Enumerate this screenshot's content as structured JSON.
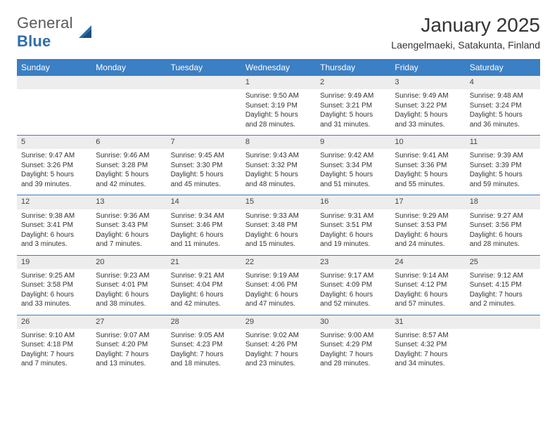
{
  "brand": {
    "word1": "General",
    "word2": "Blue"
  },
  "title": "January 2025",
  "location": "Laengelmaeki, Satakunta, Finland",
  "colors": {
    "header_bg": "#3b7fc4",
    "header_text": "#ffffff",
    "daynum_bg": "#ededed",
    "week_sep": "#3b7fc4",
    "text": "#333333",
    "logo_gray": "#5a5a5a",
    "logo_blue": "#2f6da8"
  },
  "typography": {
    "title_fontsize": 28,
    "location_fontsize": 14,
    "header_fontsize": 12,
    "daynum_fontsize": 11,
    "info_fontsize": 10
  },
  "day_headers": [
    "Sunday",
    "Monday",
    "Tuesday",
    "Wednesday",
    "Thursday",
    "Friday",
    "Saturday"
  ],
  "weeks": [
    [
      null,
      null,
      null,
      {
        "n": "1",
        "sr": "9:50 AM",
        "ss": "3:19 PM",
        "dl": "5 hours and 28 minutes."
      },
      {
        "n": "2",
        "sr": "9:49 AM",
        "ss": "3:21 PM",
        "dl": "5 hours and 31 minutes."
      },
      {
        "n": "3",
        "sr": "9:49 AM",
        "ss": "3:22 PM",
        "dl": "5 hours and 33 minutes."
      },
      {
        "n": "4",
        "sr": "9:48 AM",
        "ss": "3:24 PM",
        "dl": "5 hours and 36 minutes."
      }
    ],
    [
      {
        "n": "5",
        "sr": "9:47 AM",
        "ss": "3:26 PM",
        "dl": "5 hours and 39 minutes."
      },
      {
        "n": "6",
        "sr": "9:46 AM",
        "ss": "3:28 PM",
        "dl": "5 hours and 42 minutes."
      },
      {
        "n": "7",
        "sr": "9:45 AM",
        "ss": "3:30 PM",
        "dl": "5 hours and 45 minutes."
      },
      {
        "n": "8",
        "sr": "9:43 AM",
        "ss": "3:32 PM",
        "dl": "5 hours and 48 minutes."
      },
      {
        "n": "9",
        "sr": "9:42 AM",
        "ss": "3:34 PM",
        "dl": "5 hours and 51 minutes."
      },
      {
        "n": "10",
        "sr": "9:41 AM",
        "ss": "3:36 PM",
        "dl": "5 hours and 55 minutes."
      },
      {
        "n": "11",
        "sr": "9:39 AM",
        "ss": "3:39 PM",
        "dl": "5 hours and 59 minutes."
      }
    ],
    [
      {
        "n": "12",
        "sr": "9:38 AM",
        "ss": "3:41 PM",
        "dl": "6 hours and 3 minutes."
      },
      {
        "n": "13",
        "sr": "9:36 AM",
        "ss": "3:43 PM",
        "dl": "6 hours and 7 minutes."
      },
      {
        "n": "14",
        "sr": "9:34 AM",
        "ss": "3:46 PM",
        "dl": "6 hours and 11 minutes."
      },
      {
        "n": "15",
        "sr": "9:33 AM",
        "ss": "3:48 PM",
        "dl": "6 hours and 15 minutes."
      },
      {
        "n": "16",
        "sr": "9:31 AM",
        "ss": "3:51 PM",
        "dl": "6 hours and 19 minutes."
      },
      {
        "n": "17",
        "sr": "9:29 AM",
        "ss": "3:53 PM",
        "dl": "6 hours and 24 minutes."
      },
      {
        "n": "18",
        "sr": "9:27 AM",
        "ss": "3:56 PM",
        "dl": "6 hours and 28 minutes."
      }
    ],
    [
      {
        "n": "19",
        "sr": "9:25 AM",
        "ss": "3:58 PM",
        "dl": "6 hours and 33 minutes."
      },
      {
        "n": "20",
        "sr": "9:23 AM",
        "ss": "4:01 PM",
        "dl": "6 hours and 38 minutes."
      },
      {
        "n": "21",
        "sr": "9:21 AM",
        "ss": "4:04 PM",
        "dl": "6 hours and 42 minutes."
      },
      {
        "n": "22",
        "sr": "9:19 AM",
        "ss": "4:06 PM",
        "dl": "6 hours and 47 minutes."
      },
      {
        "n": "23",
        "sr": "9:17 AM",
        "ss": "4:09 PM",
        "dl": "6 hours and 52 minutes."
      },
      {
        "n": "24",
        "sr": "9:14 AM",
        "ss": "4:12 PM",
        "dl": "6 hours and 57 minutes."
      },
      {
        "n": "25",
        "sr": "9:12 AM",
        "ss": "4:15 PM",
        "dl": "7 hours and 2 minutes."
      }
    ],
    [
      {
        "n": "26",
        "sr": "9:10 AM",
        "ss": "4:18 PM",
        "dl": "7 hours and 7 minutes."
      },
      {
        "n": "27",
        "sr": "9:07 AM",
        "ss": "4:20 PM",
        "dl": "7 hours and 13 minutes."
      },
      {
        "n": "28",
        "sr": "9:05 AM",
        "ss": "4:23 PM",
        "dl": "7 hours and 18 minutes."
      },
      {
        "n": "29",
        "sr": "9:02 AM",
        "ss": "4:26 PM",
        "dl": "7 hours and 23 minutes."
      },
      {
        "n": "30",
        "sr": "9:00 AM",
        "ss": "4:29 PM",
        "dl": "7 hours and 28 minutes."
      },
      {
        "n": "31",
        "sr": "8:57 AM",
        "ss": "4:32 PM",
        "dl": "7 hours and 34 minutes."
      },
      null
    ]
  ],
  "labels": {
    "sunrise": "Sunrise:",
    "sunset": "Sunset:",
    "daylight": "Daylight:"
  }
}
